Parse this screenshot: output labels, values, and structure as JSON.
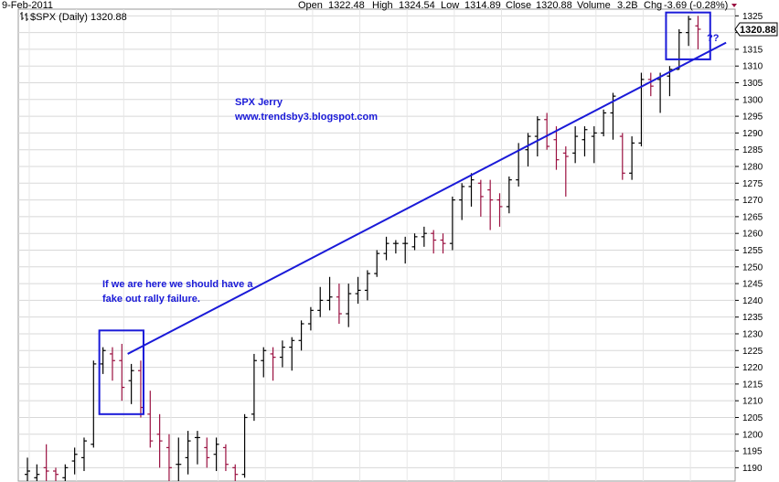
{
  "header": {
    "date": "9-Feb-2011",
    "symbol": "$SPX (Daily) 1320.88",
    "open_label": "Open",
    "open_value": "1322.48",
    "high_label": "High",
    "high_value": "1324.54",
    "low_label": "Low",
    "low_value": "1314.89",
    "close_label": "Close",
    "close_value": "1320.88",
    "volume_label": "Volume",
    "volume_value": "3.2B",
    "chg_label": "Chg",
    "chg_value": "-3.69 (-0.28%)"
  },
  "colors": {
    "up": "#000000",
    "down": "#9a1040",
    "annotation": "#1a1ad8",
    "grid": "#d8d8d8",
    "last_price_bg": "#ffffff"
  },
  "annotations": {
    "author_line1": "SPX   Jerry",
    "author_line2": "www.trendsby3.blogspot.com",
    "note_line1": "If we are here we should have a",
    "note_line2": "fake out rally failure.",
    "question": "??"
  },
  "last_price_label": "1320.88",
  "chart_data": {
    "type": "ohlc",
    "y_axis": {
      "min": 1186,
      "max": 1327,
      "ticks": [
        1190,
        1195,
        1200,
        1205,
        1210,
        1215,
        1220,
        1225,
        1230,
        1235,
        1240,
        1245,
        1250,
        1255,
        1260,
        1265,
        1270,
        1275,
        1280,
        1285,
        1290,
        1295,
        1300,
        1305,
        1310,
        1315,
        1320,
        1325
      ],
      "position": "right"
    },
    "grid": true,
    "bars": [
      {
        "o": 1188,
        "h": 1193,
        "l": 1186,
        "c": 1189
      },
      {
        "o": 1187,
        "h": 1191,
        "l": 1186,
        "c": 1188
      },
      {
        "o": 1190,
        "h": 1197,
        "l": 1186,
        "c": 1189
      },
      {
        "o": 1189,
        "h": 1190,
        "l": 1186,
        "c": 1188
      },
      {
        "o": 1187,
        "h": 1191,
        "l": 1186,
        "c": 1190
      },
      {
        "o": 1192,
        "h": 1196,
        "l": 1188,
        "c": 1194
      },
      {
        "o": 1193,
        "h": 1199,
        "l": 1189,
        "c": 1198
      },
      {
        "o": 1197,
        "h": 1222,
        "l": 1196,
        "c": 1221
      },
      {
        "o": 1221,
        "h": 1226,
        "l": 1218,
        "c": 1225
      },
      {
        "o": 1224,
        "h": 1226,
        "l": 1216,
        "c": 1222
      },
      {
        "o": 1222,
        "h": 1227,
        "l": 1210,
        "c": 1214
      },
      {
        "o": 1216,
        "h": 1221,
        "l": 1209,
        "c": 1219
      },
      {
        "o": 1219,
        "h": 1222,
        "l": 1205,
        "c": 1208
      },
      {
        "o": 1206,
        "h": 1213,
        "l": 1196,
        "c": 1198
      },
      {
        "o": 1200,
        "h": 1206,
        "l": 1190,
        "c": 1198
      },
      {
        "o": 1196,
        "h": 1200,
        "l": 1186,
        "c": 1190
      },
      {
        "o": 1191,
        "h": 1199,
        "l": 1186,
        "c": 1191
      },
      {
        "o": 1193,
        "h": 1201,
        "l": 1188,
        "c": 1198
      },
      {
        "o": 1199,
        "h": 1201,
        "l": 1191,
        "c": 1199
      },
      {
        "o": 1196,
        "h": 1199,
        "l": 1190,
        "c": 1193
      },
      {
        "o": 1194,
        "h": 1199,
        "l": 1189,
        "c": 1197
      },
      {
        "o": 1196,
        "h": 1197,
        "l": 1189,
        "c": 1191
      },
      {
        "o": 1190,
        "h": 1191,
        "l": 1186,
        "c": 1188
      },
      {
        "o": 1188,
        "h": 1206,
        "l": 1187,
        "c": 1205
      },
      {
        "o": 1206,
        "h": 1224,
        "l": 1204,
        "c": 1222
      },
      {
        "o": 1222,
        "h": 1226,
        "l": 1217,
        "c": 1225
      },
      {
        "o": 1224,
        "h": 1226,
        "l": 1216,
        "c": 1223
      },
      {
        "o": 1223,
        "h": 1228,
        "l": 1220,
        "c": 1226
      },
      {
        "o": 1226,
        "h": 1229,
        "l": 1219,
        "c": 1228
      },
      {
        "o": 1228,
        "h": 1234,
        "l": 1225,
        "c": 1233
      },
      {
        "o": 1233,
        "h": 1238,
        "l": 1231,
        "c": 1237
      },
      {
        "o": 1237,
        "h": 1244,
        "l": 1235,
        "c": 1240
      },
      {
        "o": 1240,
        "h": 1247,
        "l": 1237,
        "c": 1241
      },
      {
        "o": 1241,
        "h": 1245,
        "l": 1233,
        "c": 1236
      },
      {
        "o": 1236,
        "h": 1245,
        "l": 1232,
        "c": 1242
      },
      {
        "o": 1242,
        "h": 1247,
        "l": 1239,
        "c": 1243
      },
      {
        "o": 1243,
        "h": 1249,
        "l": 1240,
        "c": 1248
      },
      {
        "o": 1248,
        "h": 1255,
        "l": 1247,
        "c": 1254
      },
      {
        "o": 1254,
        "h": 1259,
        "l": 1252,
        "c": 1257
      },
      {
        "o": 1257,
        "h": 1258,
        "l": 1254,
        "c": 1257
      },
      {
        "o": 1257,
        "h": 1259,
        "l": 1251,
        "c": 1257
      },
      {
        "o": 1256,
        "h": 1260,
        "l": 1255,
        "c": 1259
      },
      {
        "o": 1259,
        "h": 1262,
        "l": 1256,
        "c": 1260
      },
      {
        "o": 1260,
        "h": 1261,
        "l": 1254,
        "c": 1258
      },
      {
        "o": 1258,
        "h": 1260,
        "l": 1254,
        "c": 1257
      },
      {
        "o": 1257,
        "h": 1271,
        "l": 1255,
        "c": 1270
      },
      {
        "o": 1270,
        "h": 1275,
        "l": 1264,
        "c": 1274
      },
      {
        "o": 1274,
        "h": 1278,
        "l": 1268,
        "c": 1276
      },
      {
        "o": 1275,
        "h": 1276,
        "l": 1265,
        "c": 1271
      },
      {
        "o": 1273,
        "h": 1276,
        "l": 1261,
        "c": 1270
      },
      {
        "o": 1270,
        "h": 1272,
        "l": 1262,
        "c": 1268
      },
      {
        "o": 1268,
        "h": 1277,
        "l": 1266,
        "c": 1276
      },
      {
        "o": 1276,
        "h": 1287,
        "l": 1274,
        "c": 1285
      },
      {
        "o": 1285,
        "h": 1290,
        "l": 1280,
        "c": 1289
      },
      {
        "o": 1289,
        "h": 1295,
        "l": 1283,
        "c": 1294
      },
      {
        "o": 1294,
        "h": 1296,
        "l": 1285,
        "c": 1286
      },
      {
        "o": 1288,
        "h": 1292,
        "l": 1279,
        "c": 1282
      },
      {
        "o": 1284,
        "h": 1286,
        "l": 1271,
        "c": 1283
      },
      {
        "o": 1284,
        "h": 1292,
        "l": 1281,
        "c": 1289
      },
      {
        "o": 1288,
        "h": 1292,
        "l": 1283,
        "c": 1291
      },
      {
        "o": 1289,
        "h": 1292,
        "l": 1281,
        "c": 1290
      },
      {
        "o": 1290,
        "h": 1297,
        "l": 1289,
        "c": 1296
      },
      {
        "o": 1296,
        "h": 1302,
        "l": 1288,
        "c": 1301
      },
      {
        "o": 1289,
        "h": 1290,
        "l": 1276,
        "c": 1278
      },
      {
        "o": 1278,
        "h": 1289,
        "l": 1276,
        "c": 1287
      },
      {
        "o": 1287,
        "h": 1308,
        "l": 1286,
        "c": 1306
      },
      {
        "o": 1306,
        "h": 1308,
        "l": 1301,
        "c": 1304
      },
      {
        "o": 1306,
        "h": 1308,
        "l": 1296,
        "c": 1307
      },
      {
        "o": 1307,
        "h": 1310,
        "l": 1301,
        "c": 1309
      },
      {
        "o": 1309,
        "h": 1321,
        "l": 1309,
        "c": 1320
      },
      {
        "o": 1320,
        "h": 1325,
        "l": 1316,
        "c": 1324
      },
      {
        "o": 1322,
        "h": 1325,
        "l": 1315,
        "c": 1321
      }
    ],
    "trendline": {
      "from_bar": 11,
      "from_price": 1224,
      "to_bar": 73,
      "to_price": 1317
    },
    "boxes": [
      {
        "bar_start": 8,
        "bar_end": 12,
        "price_low": 1206,
        "price_high": 1231
      },
      {
        "bar_start": 68,
        "bar_end": 72,
        "price_low": 1312,
        "price_high": 1326
      }
    ]
  }
}
